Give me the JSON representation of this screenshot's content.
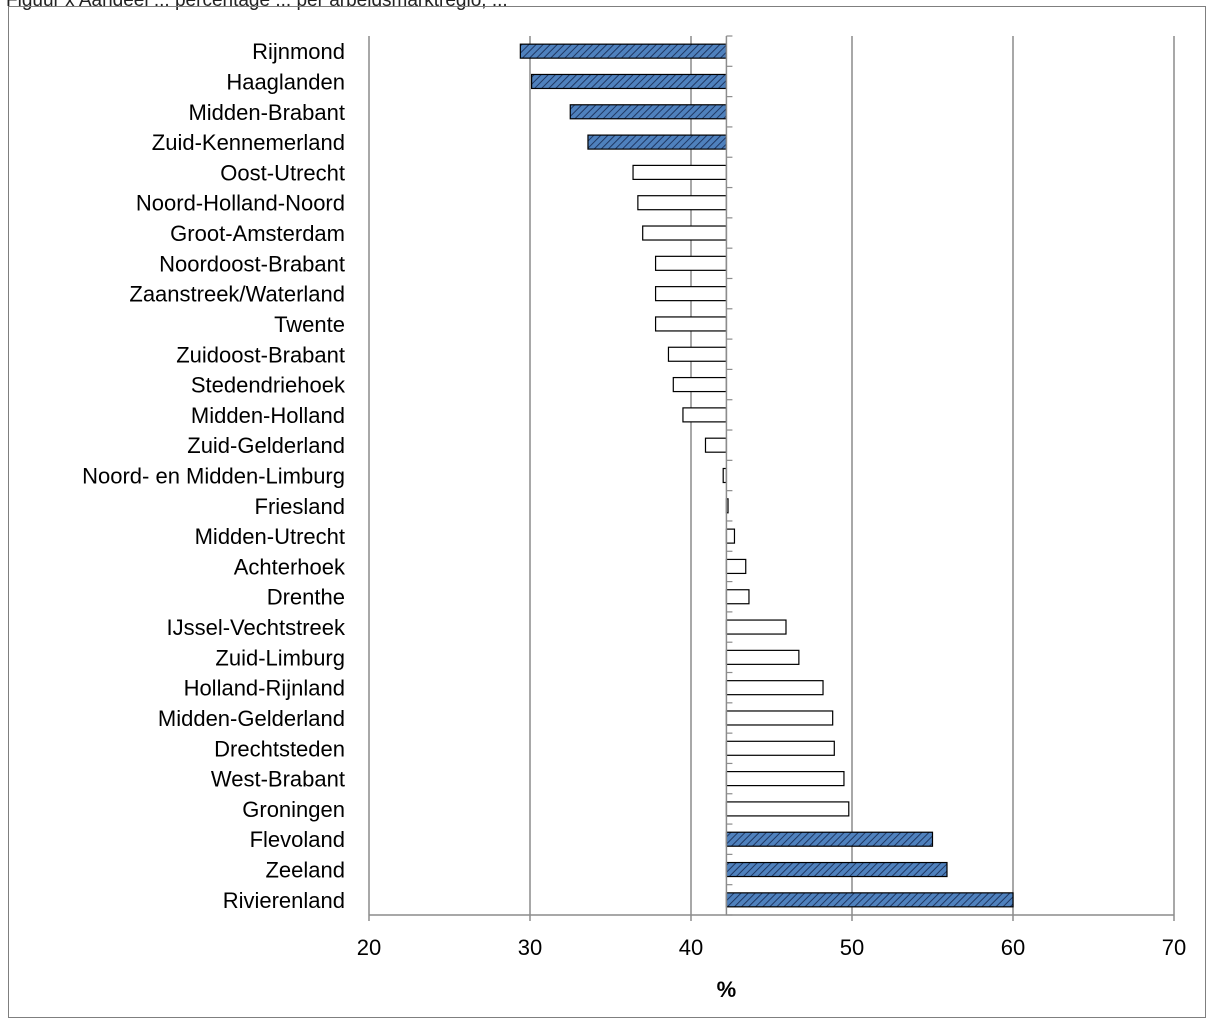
{
  "caption": "Figuur x  Aandeel ... percentage ... per arbeidsmarktregio, ...",
  "chart_data": {
    "type": "bar",
    "orientation": "horizontal",
    "title": "",
    "xlabel": "%",
    "ylabel": "",
    "xlim": [
      20,
      70
    ],
    "xticks": [
      20,
      30,
      40,
      50,
      60,
      70
    ],
    "baseline": 42.2,
    "grid": "vertical",
    "categories": [
      "Rijnmond",
      "Haaglanden",
      "Midden-Brabant",
      "Zuid-Kennemerland",
      "Oost-Utrecht",
      "Noord-Holland-Noord",
      "Groot-Amsterdam",
      "Noordoost-Brabant",
      "Zaanstreek/Waterland",
      "Twente",
      "Zuidoost-Brabant",
      "Stedendriehoek",
      "Midden-Holland",
      "Zuid-Gelderland",
      "Noord- en Midden-Limburg",
      "Friesland",
      "Midden-Utrecht",
      "Achterhoek",
      "Drenthe",
      "IJssel-Vechtstreek",
      "Zuid-Limburg",
      "Holland-Rijnland",
      "Midden-Gelderland",
      "Drechtsteden",
      "West-Brabant",
      "Groningen",
      "Flevoland",
      "Zeeland",
      "Rivierenland"
    ],
    "values": [
      29.4,
      30.1,
      32.5,
      33.6,
      36.4,
      36.7,
      37.0,
      37.8,
      37.8,
      37.8,
      38.6,
      38.9,
      39.5,
      40.9,
      42.0,
      42.3,
      42.7,
      43.4,
      43.6,
      45.9,
      46.7,
      48.2,
      48.8,
      48.9,
      49.5,
      49.8,
      55.0,
      55.9,
      60.0
    ],
    "highlighted": [
      "Rijnmond",
      "Haaglanden",
      "Midden-Brabant",
      "Zuid-Kennemerland",
      "Flevoland",
      "Zeeland",
      "Rivierenland"
    ],
    "colors": {
      "highlight": "#4f81bd",
      "highlight_hatch": "#1f3864",
      "normal": "#ffffff",
      "stroke": "#000000",
      "grid": "#8c8c8c"
    }
  }
}
